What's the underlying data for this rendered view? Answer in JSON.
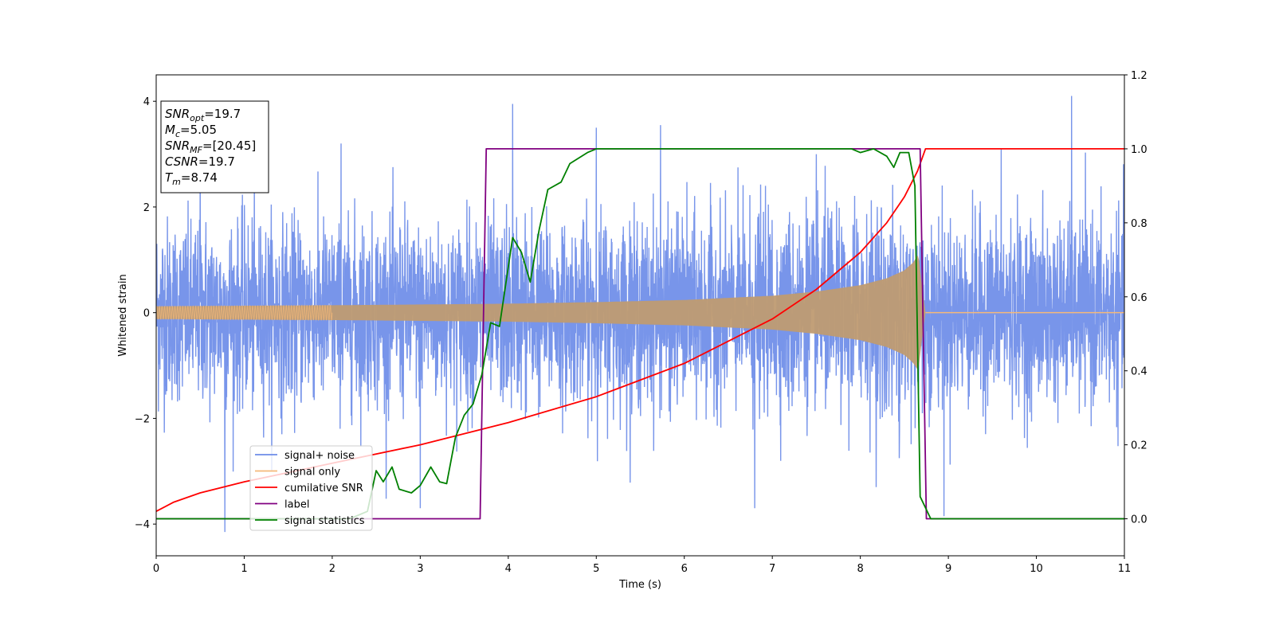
{
  "chart_data": {
    "type": "line",
    "xlabel": "Time (s)",
    "ylabel": "Whitened strain",
    "xlim": [
      0,
      11
    ],
    "ylim": [
      -4.6,
      4.5
    ],
    "y2lim": [
      -0.1,
      1.2
    ],
    "xticks": [
      0,
      1,
      2,
      3,
      4,
      5,
      6,
      7,
      8,
      9,
      10,
      11
    ],
    "yticks": [
      -4,
      -2,
      0,
      2,
      4
    ],
    "y2ticks": [
      "0.0",
      "0.2",
      "0.4",
      "0.6",
      "0.8",
      "1.0",
      "1.2"
    ],
    "grid": false,
    "legend_position": "lower-left",
    "info_box": [
      {
        "label": "SNR",
        "sub": "opt",
        "value": "=19.7"
      },
      {
        "label": "M",
        "sub": "c",
        "value": "=5.05"
      },
      {
        "label": "SNR",
        "sub": "MF",
        "value": "=[20.45]"
      },
      {
        "label": "CSNR",
        "sub": "",
        "value": "=19.7"
      },
      {
        "label": "T",
        "sub": "m",
        "value": "=8.74"
      }
    ],
    "series": [
      {
        "name": "signal+ noise",
        "axis": "left",
        "color": "#6d8ce8",
        "noise_amplitude": 1.55,
        "noise_peaks": [
          {
            "x": 0.78,
            "y": -4.15
          },
          {
            "x": 4.05,
            "y": 3.95
          },
          {
            "x": 10.4,
            "y": 4.1
          },
          {
            "x": 6.8,
            "y": -3.7
          },
          {
            "x": 8.95,
            "y": -3.85
          },
          {
            "x": 2.1,
            "y": 3.2
          },
          {
            "x": 5.0,
            "y": 3.5
          },
          {
            "x": 5.73,
            "y": 3.55
          },
          {
            "x": 3.0,
            "y": -3.7
          },
          {
            "x": 0.5,
            "y": 3.0
          },
          {
            "x": 7.5,
            "y": 3.0
          },
          {
            "x": 9.6,
            "y": 3.1
          }
        ]
      },
      {
        "name": "signal only",
        "axis": "left",
        "color": "#f5b979",
        "merger_time": 8.74,
        "envelope": [
          {
            "x": 0.0,
            "y": 0.12
          },
          {
            "x": 2.0,
            "y": 0.14
          },
          {
            "x": 4.0,
            "y": 0.17
          },
          {
            "x": 5.0,
            "y": 0.2
          },
          {
            "x": 6.0,
            "y": 0.24
          },
          {
            "x": 7.0,
            "y": 0.32
          },
          {
            "x": 7.5,
            "y": 0.4
          },
          {
            "x": 8.0,
            "y": 0.52
          },
          {
            "x": 8.3,
            "y": 0.65
          },
          {
            "x": 8.5,
            "y": 0.8
          },
          {
            "x": 8.6,
            "y": 0.95
          },
          {
            "x": 8.66,
            "y": 1.1
          },
          {
            "x": 8.7,
            "y": 0.5
          },
          {
            "x": 8.74,
            "y": 0.0
          }
        ]
      },
      {
        "name": "cumilative SNR",
        "axis": "right",
        "color": "#ff0000",
        "points": [
          {
            "x": 0.0,
            "y": 0.02
          },
          {
            "x": 0.2,
            "y": 0.045
          },
          {
            "x": 0.5,
            "y": 0.07
          },
          {
            "x": 1.0,
            "y": 0.1
          },
          {
            "x": 2.0,
            "y": 0.15
          },
          {
            "x": 3.0,
            "y": 0.2
          },
          {
            "x": 4.0,
            "y": 0.26
          },
          {
            "x": 5.0,
            "y": 0.33
          },
          {
            "x": 6.0,
            "y": 0.42
          },
          {
            "x": 7.0,
            "y": 0.54
          },
          {
            "x": 7.5,
            "y": 0.62
          },
          {
            "x": 8.0,
            "y": 0.72
          },
          {
            "x": 8.3,
            "y": 0.8
          },
          {
            "x": 8.5,
            "y": 0.87
          },
          {
            "x": 8.65,
            "y": 0.94
          },
          {
            "x": 8.74,
            "y": 1.0
          },
          {
            "x": 11.0,
            "y": 1.0
          }
        ]
      },
      {
        "name": "label",
        "axis": "right",
        "color": "#800080",
        "points": [
          {
            "x": 0.0,
            "y": 0.0
          },
          {
            "x": 3.68,
            "y": 0.0
          },
          {
            "x": 3.75,
            "y": 1.0
          },
          {
            "x": 8.68,
            "y": 1.0
          },
          {
            "x": 8.75,
            "y": 0.0
          },
          {
            "x": 11.0,
            "y": 0.0
          }
        ]
      },
      {
        "name": "signal statistics",
        "axis": "right",
        "color": "#008000",
        "points": [
          {
            "x": 0.0,
            "y": 0.0
          },
          {
            "x": 2.2,
            "y": 0.0
          },
          {
            "x": 2.4,
            "y": 0.02
          },
          {
            "x": 2.5,
            "y": 0.13
          },
          {
            "x": 2.58,
            "y": 0.1
          },
          {
            "x": 2.68,
            "y": 0.14
          },
          {
            "x": 2.76,
            "y": 0.08
          },
          {
            "x": 2.9,
            "y": 0.07
          },
          {
            "x": 3.0,
            "y": 0.09
          },
          {
            "x": 3.12,
            "y": 0.14
          },
          {
            "x": 3.22,
            "y": 0.1
          },
          {
            "x": 3.3,
            "y": 0.095
          },
          {
            "x": 3.4,
            "y": 0.22
          },
          {
            "x": 3.5,
            "y": 0.28
          },
          {
            "x": 3.6,
            "y": 0.31
          },
          {
            "x": 3.7,
            "y": 0.39
          },
          {
            "x": 3.8,
            "y": 0.53
          },
          {
            "x": 3.9,
            "y": 0.52
          },
          {
            "x": 4.05,
            "y": 0.76
          },
          {
            "x": 4.15,
            "y": 0.72
          },
          {
            "x": 4.25,
            "y": 0.64
          },
          {
            "x": 4.35,
            "y": 0.78
          },
          {
            "x": 4.45,
            "y": 0.89
          },
          {
            "x": 4.6,
            "y": 0.91
          },
          {
            "x": 4.7,
            "y": 0.96
          },
          {
            "x": 4.9,
            "y": 0.99
          },
          {
            "x": 5.0,
            "y": 1.0
          },
          {
            "x": 6.0,
            "y": 1.0
          },
          {
            "x": 7.0,
            "y": 1.0
          },
          {
            "x": 7.5,
            "y": 1.0
          },
          {
            "x": 7.9,
            "y": 1.0
          },
          {
            "x": 8.0,
            "y": 0.99
          },
          {
            "x": 8.15,
            "y": 1.0
          },
          {
            "x": 8.3,
            "y": 0.98
          },
          {
            "x": 8.38,
            "y": 0.95
          },
          {
            "x": 8.45,
            "y": 0.99
          },
          {
            "x": 8.55,
            "y": 0.99
          },
          {
            "x": 8.62,
            "y": 0.9
          },
          {
            "x": 8.68,
            "y": 0.06
          },
          {
            "x": 8.8,
            "y": 0.0
          },
          {
            "x": 11.0,
            "y": 0.0
          }
        ]
      }
    ]
  }
}
